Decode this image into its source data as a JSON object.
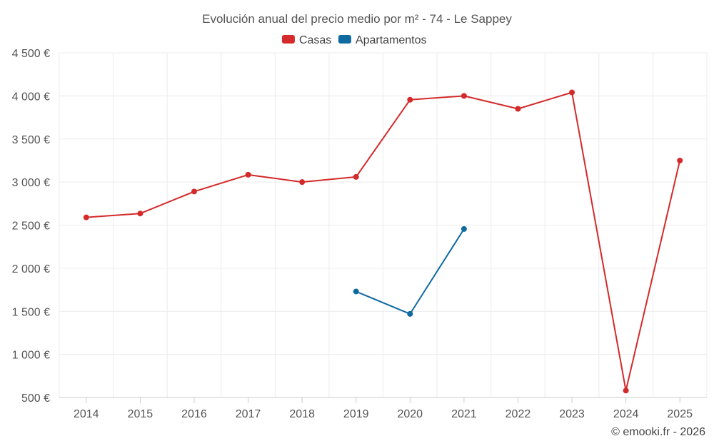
{
  "chart_data": {
    "type": "line",
    "title": "Evolución anual del precio medio por m² - 74 - Le Sappey",
    "categories": [
      "2014",
      "2015",
      "2016",
      "2017",
      "2018",
      "2019",
      "2020",
      "2021",
      "2022",
      "2023",
      "2024",
      "2025"
    ],
    "series": [
      {
        "name": "Casas",
        "color": "#d42a2a",
        "values": [
          2590,
          2635,
          2890,
          3085,
          3000,
          3060,
          3955,
          4000,
          3850,
          4040,
          580,
          3250
        ]
      },
      {
        "name": "Apartamentos",
        "color": "#0f6aa1",
        "values": [
          null,
          null,
          null,
          null,
          null,
          1730,
          1470,
          2455,
          null,
          null,
          null,
          null
        ]
      }
    ],
    "ylim": [
      500,
      4500
    ],
    "yticks": [
      500,
      1000,
      1500,
      2000,
      2500,
      3000,
      3500,
      4000,
      4500
    ],
    "ytick_labels": [
      "500 €",
      "1 000 €",
      "1 500 €",
      "2 000 €",
      "2 500 €",
      "3 000 €",
      "3 500 €",
      "4 000 €",
      "4 500 €"
    ],
    "xlabel": "",
    "ylabel": "",
    "grid": true,
    "legend": "top-center"
  },
  "credit": "© emooki.fr - 2026"
}
